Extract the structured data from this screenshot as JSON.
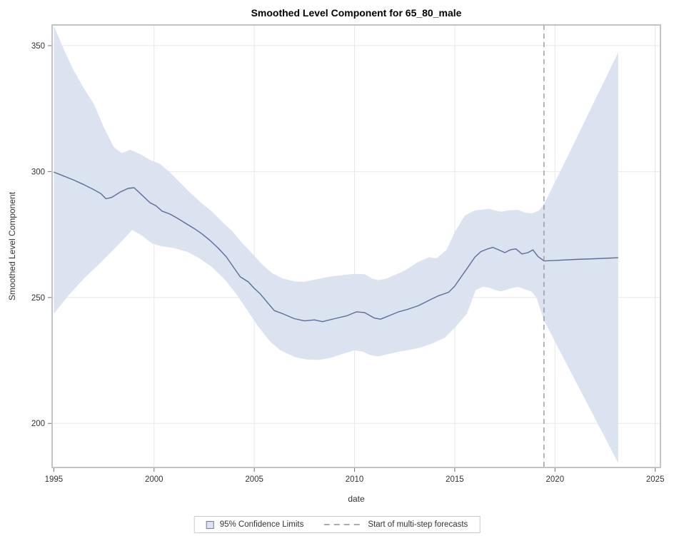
{
  "title": "Smoothed Level Component for 65_80_male",
  "legend": {
    "ci_label": "95% Confidence Limits",
    "forecast_label": "Start of multi-step forecasts"
  },
  "colors": {
    "band": "#dbe3f0",
    "line": "#5b6e96",
    "forecast_marker": "#8f8f8f",
    "grid": "#e8e8e8",
    "plot_border": "#b2b5b8",
    "tick": "#6e6e6e",
    "tick_label": "#333333"
  },
  "chart_data": {
    "type": "line",
    "title": "Smoothed Level Component for 65_80_male",
    "xlabel": "date",
    "ylabel": "Smoothed Level Component",
    "xlim": [
      1994.915,
      2025.26
    ],
    "ylim": [
      182.5,
      358.2
    ],
    "x_ticks": [
      1995,
      2000,
      2005,
      2010,
      2015,
      2020,
      2025
    ],
    "y_ticks": [
      200,
      250,
      300,
      350
    ],
    "grid": true,
    "legend_position": "bottom-center",
    "forecast_start_x": 2019.45,
    "series": [
      {
        "name": "Smoothed Level Component",
        "role": "line",
        "points": [
          [
            1995.0,
            299.8
          ],
          [
            1995.5,
            298.2
          ],
          [
            1996.0,
            296.6
          ],
          [
            1996.5,
            294.8
          ],
          [
            1997.0,
            292.8
          ],
          [
            1997.35,
            291.2
          ],
          [
            1997.6,
            289.2
          ],
          [
            1997.9,
            289.8
          ],
          [
            1998.3,
            291.8
          ],
          [
            1998.7,
            293.3
          ],
          [
            1999.0,
            293.6
          ],
          [
            1999.3,
            291.4
          ],
          [
            1999.8,
            287.6
          ],
          [
            2000.1,
            286.4
          ],
          [
            2000.4,
            284.3
          ],
          [
            2000.8,
            283.1
          ],
          [
            2001.2,
            281.3
          ],
          [
            2001.6,
            279.3
          ],
          [
            2002.0,
            277.4
          ],
          [
            2002.4,
            275.2
          ],
          [
            2002.8,
            272.6
          ],
          [
            2003.2,
            269.6
          ],
          [
            2003.6,
            266.2
          ],
          [
            2004.0,
            261.6
          ],
          [
            2004.3,
            258.2
          ],
          [
            2004.7,
            256.2
          ],
          [
            2005.0,
            253.6
          ],
          [
            2005.3,
            251.4
          ],
          [
            2005.7,
            247.6
          ],
          [
            2006.0,
            244.8
          ],
          [
            2006.4,
            243.6
          ],
          [
            2007.0,
            241.6
          ],
          [
            2007.5,
            240.7
          ],
          [
            2008.0,
            241.1
          ],
          [
            2008.4,
            240.4
          ],
          [
            2009.0,
            241.6
          ],
          [
            2009.6,
            242.7
          ],
          [
            2010.1,
            244.3
          ],
          [
            2010.5,
            244.0
          ],
          [
            2011.0,
            241.8
          ],
          [
            2011.3,
            241.4
          ],
          [
            2011.8,
            243.0
          ],
          [
            2012.2,
            244.3
          ],
          [
            2012.7,
            245.4
          ],
          [
            2013.2,
            246.8
          ],
          [
            2013.8,
            249.2
          ],
          [
            2014.2,
            250.7
          ],
          [
            2014.7,
            252.1
          ],
          [
            2015.0,
            254.5
          ],
          [
            2015.3,
            258.0
          ],
          [
            2015.7,
            262.5
          ],
          [
            2016.0,
            266.0
          ],
          [
            2016.3,
            268.2
          ],
          [
            2016.6,
            269.2
          ],
          [
            2016.9,
            269.9
          ],
          [
            2017.2,
            268.9
          ],
          [
            2017.5,
            267.8
          ],
          [
            2017.8,
            269.0
          ],
          [
            2018.05,
            269.3
          ],
          [
            2018.35,
            267.3
          ],
          [
            2018.65,
            267.8
          ],
          [
            2018.9,
            268.9
          ],
          [
            2019.15,
            266.3
          ],
          [
            2019.45,
            264.5
          ],
          [
            2020.0,
            264.7
          ],
          [
            2021.0,
            265.1
          ],
          [
            2022.0,
            265.4
          ],
          [
            2023.15,
            265.8
          ]
        ]
      },
      {
        "name": "95% Confidence Limits (upper)",
        "role": "band-upper",
        "points": [
          [
            1995.0,
            357.8
          ],
          [
            1995.5,
            348.5
          ],
          [
            1996.0,
            340.0
          ],
          [
            1996.5,
            333.0
          ],
          [
            1997.0,
            326.8
          ],
          [
            1997.5,
            317.5
          ],
          [
            1998.0,
            309.6
          ],
          [
            1998.4,
            307.3
          ],
          [
            1998.8,
            308.7
          ],
          [
            1999.3,
            307.0
          ],
          [
            1999.8,
            304.6
          ],
          [
            2000.3,
            303.0
          ],
          [
            2000.8,
            299.6
          ],
          [
            2001.3,
            295.6
          ],
          [
            2001.8,
            291.6
          ],
          [
            2002.3,
            288.0
          ],
          [
            2002.9,
            284.0
          ],
          [
            2003.4,
            280.0
          ],
          [
            2003.9,
            276.4
          ],
          [
            2004.4,
            271.6
          ],
          [
            2004.9,
            267.4
          ],
          [
            2005.4,
            263.0
          ],
          [
            2005.9,
            259.6
          ],
          [
            2006.4,
            257.6
          ],
          [
            2007.0,
            256.4
          ],
          [
            2007.5,
            256.2
          ],
          [
            2008.1,
            257.2
          ],
          [
            2008.7,
            258.2
          ],
          [
            2009.4,
            258.9
          ],
          [
            2010.0,
            259.4
          ],
          [
            2010.5,
            259.2
          ],
          [
            2010.9,
            257.4
          ],
          [
            2011.2,
            256.9
          ],
          [
            2011.6,
            257.5
          ],
          [
            2012.1,
            259.2
          ],
          [
            2012.6,
            261.1
          ],
          [
            2013.1,
            263.8
          ],
          [
            2013.7,
            266.0
          ],
          [
            2014.1,
            265.6
          ],
          [
            2014.6,
            269.0
          ],
          [
            2015.0,
            276.0
          ],
          [
            2015.5,
            282.5
          ],
          [
            2016.0,
            284.6
          ],
          [
            2016.7,
            285.2
          ],
          [
            2017.3,
            284.0
          ],
          [
            2017.7,
            284.6
          ],
          [
            2018.15,
            284.8
          ],
          [
            2018.5,
            283.7
          ],
          [
            2018.85,
            283.4
          ],
          [
            2019.2,
            284.5
          ],
          [
            2019.45,
            287.0
          ],
          [
            2020.0,
            295.8
          ],
          [
            2021.0,
            312.0
          ],
          [
            2022.0,
            328.5
          ],
          [
            2023.15,
            347.3
          ]
        ]
      },
      {
        "name": "95% Confidence Limits (lower)",
        "role": "band-lower",
        "points": [
          [
            1995.0,
            243.5
          ],
          [
            1995.7,
            250.5
          ],
          [
            1996.5,
            257.5
          ],
          [
            1997.3,
            263.6
          ],
          [
            1998.1,
            270.0
          ],
          [
            1998.5,
            273.3
          ],
          [
            1998.9,
            276.8
          ],
          [
            1999.4,
            274.6
          ],
          [
            1999.9,
            271.4
          ],
          [
            2000.3,
            270.5
          ],
          [
            2001.0,
            269.6
          ],
          [
            2001.7,
            268.0
          ],
          [
            2002.3,
            265.4
          ],
          [
            2002.9,
            262.0
          ],
          [
            2003.5,
            257.4
          ],
          [
            2004.1,
            251.4
          ],
          [
            2004.7,
            244.4
          ],
          [
            2005.2,
            238.4
          ],
          [
            2005.8,
            232.4
          ],
          [
            2006.3,
            229.0
          ],
          [
            2007.0,
            226.4
          ],
          [
            2007.6,
            225.4
          ],
          [
            2008.2,
            225.2
          ],
          [
            2008.8,
            226.0
          ],
          [
            2009.4,
            227.6
          ],
          [
            2010.0,
            229.0
          ],
          [
            2010.4,
            228.5
          ],
          [
            2010.8,
            227.1
          ],
          [
            2011.2,
            226.6
          ],
          [
            2011.7,
            227.6
          ],
          [
            2012.2,
            228.5
          ],
          [
            2012.8,
            229.3
          ],
          [
            2013.3,
            230.1
          ],
          [
            2013.9,
            231.8
          ],
          [
            2014.5,
            234.0
          ],
          [
            2015.0,
            238.0
          ],
          [
            2015.6,
            243.5
          ],
          [
            2016.05,
            253.0
          ],
          [
            2016.4,
            254.2
          ],
          [
            2016.7,
            254.0
          ],
          [
            2017.0,
            253.0
          ],
          [
            2017.3,
            252.4
          ],
          [
            2017.8,
            253.6
          ],
          [
            2018.15,
            254.2
          ],
          [
            2018.5,
            253.2
          ],
          [
            2018.85,
            252.3
          ],
          [
            2019.1,
            249.5
          ],
          [
            2019.45,
            241.0
          ],
          [
            2020.0,
            232.5
          ],
          [
            2021.0,
            217.2
          ],
          [
            2022.0,
            201.9
          ],
          [
            2023.15,
            184.3
          ]
        ]
      }
    ]
  }
}
